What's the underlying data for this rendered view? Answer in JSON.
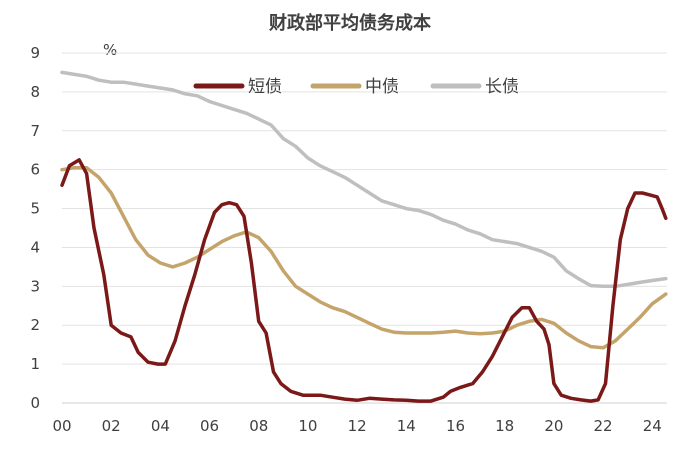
{
  "chart_data": {
    "type": "line",
    "title": "财政部平均债务成本",
    "unit_label": "%",
    "xlabel": "",
    "ylabel": "",
    "x_ticks": [
      "00",
      "02",
      "04",
      "06",
      "08",
      "10",
      "12",
      "14",
      "16",
      "18",
      "20",
      "22",
      "24"
    ],
    "y_ticks": [
      "0",
      "1",
      "2",
      "3",
      "4",
      "5",
      "6",
      "7",
      "8",
      "9"
    ],
    "xlim": [
      2000,
      2024.6
    ],
    "ylim": [
      0,
      9
    ],
    "grid": "horizontal",
    "legend_position": "top-center",
    "series": [
      {
        "name": "短债",
        "color": "#7B1818",
        "points": [
          [
            2000.0,
            5.6
          ],
          [
            2000.3,
            6.1
          ],
          [
            2000.7,
            6.25
          ],
          [
            2001.0,
            5.9
          ],
          [
            2001.3,
            4.5
          ],
          [
            2001.7,
            3.3
          ],
          [
            2002.0,
            2.0
          ],
          [
            2002.4,
            1.8
          ],
          [
            2002.8,
            1.7
          ],
          [
            2003.1,
            1.3
          ],
          [
            2003.5,
            1.05
          ],
          [
            2003.9,
            1.0
          ],
          [
            2004.2,
            1.0
          ],
          [
            2004.6,
            1.6
          ],
          [
            2005.0,
            2.5
          ],
          [
            2005.4,
            3.3
          ],
          [
            2005.8,
            4.2
          ],
          [
            2006.2,
            4.9
          ],
          [
            2006.5,
            5.1
          ],
          [
            2006.8,
            5.15
          ],
          [
            2007.1,
            5.1
          ],
          [
            2007.4,
            4.8
          ],
          [
            2007.7,
            3.6
          ],
          [
            2008.0,
            2.1
          ],
          [
            2008.3,
            1.8
          ],
          [
            2008.6,
            0.8
          ],
          [
            2008.9,
            0.5
          ],
          [
            2009.3,
            0.3
          ],
          [
            2009.8,
            0.2
          ],
          [
            2010.5,
            0.2
          ],
          [
            2011.0,
            0.15
          ],
          [
            2011.5,
            0.1
          ],
          [
            2012.0,
            0.07
          ],
          [
            2012.5,
            0.12
          ],
          [
            2013.0,
            0.1
          ],
          [
            2013.5,
            0.08
          ],
          [
            2014.0,
            0.07
          ],
          [
            2014.5,
            0.05
          ],
          [
            2015.0,
            0.05
          ],
          [
            2015.5,
            0.15
          ],
          [
            2015.8,
            0.3
          ],
          [
            2016.2,
            0.4
          ],
          [
            2016.7,
            0.5
          ],
          [
            2017.1,
            0.8
          ],
          [
            2017.5,
            1.2
          ],
          [
            2017.9,
            1.7
          ],
          [
            2018.3,
            2.2
          ],
          [
            2018.7,
            2.45
          ],
          [
            2019.0,
            2.45
          ],
          [
            2019.3,
            2.1
          ],
          [
            2019.6,
            1.9
          ],
          [
            2019.8,
            1.5
          ],
          [
            2020.0,
            0.5
          ],
          [
            2020.3,
            0.2
          ],
          [
            2020.7,
            0.12
          ],
          [
            2021.1,
            0.08
          ],
          [
            2021.5,
            0.05
          ],
          [
            2021.8,
            0.08
          ],
          [
            2022.1,
            0.5
          ],
          [
            2022.4,
            2.5
          ],
          [
            2022.7,
            4.2
          ],
          [
            2023.0,
            5.0
          ],
          [
            2023.3,
            5.4
          ],
          [
            2023.6,
            5.4
          ],
          [
            2023.9,
            5.35
          ],
          [
            2024.2,
            5.3
          ],
          [
            2024.4,
            5.0
          ],
          [
            2024.55,
            4.75
          ]
        ]
      },
      {
        "name": "中债",
        "color": "#C4A46A",
        "points": [
          [
            2000.0,
            6.0
          ],
          [
            2000.5,
            6.05
          ],
          [
            2001.0,
            6.05
          ],
          [
            2001.5,
            5.8
          ],
          [
            2002.0,
            5.4
          ],
          [
            2002.5,
            4.8
          ],
          [
            2003.0,
            4.2
          ],
          [
            2003.5,
            3.8
          ],
          [
            2004.0,
            3.6
          ],
          [
            2004.5,
            3.5
          ],
          [
            2005.0,
            3.6
          ],
          [
            2005.5,
            3.75
          ],
          [
            2006.0,
            3.95
          ],
          [
            2006.5,
            4.15
          ],
          [
            2007.0,
            4.3
          ],
          [
            2007.5,
            4.4
          ],
          [
            2008.0,
            4.25
          ],
          [
            2008.5,
            3.9
          ],
          [
            2009.0,
            3.4
          ],
          [
            2009.5,
            3.0
          ],
          [
            2010.0,
            2.8
          ],
          [
            2010.5,
            2.6
          ],
          [
            2011.0,
            2.45
          ],
          [
            2011.5,
            2.35
          ],
          [
            2012.0,
            2.2
          ],
          [
            2012.5,
            2.05
          ],
          [
            2013.0,
            1.9
          ],
          [
            2013.5,
            1.82
          ],
          [
            2014.0,
            1.8
          ],
          [
            2014.5,
            1.8
          ],
          [
            2015.0,
            1.8
          ],
          [
            2015.5,
            1.82
          ],
          [
            2016.0,
            1.85
          ],
          [
            2016.5,
            1.8
          ],
          [
            2017.0,
            1.78
          ],
          [
            2017.5,
            1.8
          ],
          [
            2018.0,
            1.85
          ],
          [
            2018.5,
            2.0
          ],
          [
            2019.0,
            2.1
          ],
          [
            2019.5,
            2.15
          ],
          [
            2020.0,
            2.05
          ],
          [
            2020.5,
            1.8
          ],
          [
            2021.0,
            1.6
          ],
          [
            2021.5,
            1.45
          ],
          [
            2022.0,
            1.42
          ],
          [
            2022.5,
            1.6
          ],
          [
            2023.0,
            1.9
          ],
          [
            2023.5,
            2.2
          ],
          [
            2024.0,
            2.55
          ],
          [
            2024.55,
            2.8
          ]
        ]
      },
      {
        "name": "长债",
        "color": "#BFBFBF",
        "points": [
          [
            2000.0,
            8.5
          ],
          [
            2000.5,
            8.45
          ],
          [
            2001.0,
            8.4
          ],
          [
            2001.5,
            8.3
          ],
          [
            2002.0,
            8.25
          ],
          [
            2002.5,
            8.25
          ],
          [
            2003.0,
            8.2
          ],
          [
            2003.5,
            8.15
          ],
          [
            2004.0,
            8.1
          ],
          [
            2004.5,
            8.05
          ],
          [
            2005.0,
            7.95
          ],
          [
            2005.5,
            7.9
          ],
          [
            2006.0,
            7.75
          ],
          [
            2006.5,
            7.65
          ],
          [
            2007.0,
            7.55
          ],
          [
            2007.5,
            7.45
          ],
          [
            2008.0,
            7.3
          ],
          [
            2008.5,
            7.15
          ],
          [
            2009.0,
            6.8
          ],
          [
            2009.5,
            6.6
          ],
          [
            2010.0,
            6.3
          ],
          [
            2010.5,
            6.1
          ],
          [
            2011.0,
            5.95
          ],
          [
            2011.5,
            5.8
          ],
          [
            2012.0,
            5.6
          ],
          [
            2012.5,
            5.4
          ],
          [
            2013.0,
            5.2
          ],
          [
            2013.5,
            5.1
          ],
          [
            2014.0,
            5.0
          ],
          [
            2014.5,
            4.95
          ],
          [
            2015.0,
            4.85
          ],
          [
            2015.5,
            4.7
          ],
          [
            2016.0,
            4.6
          ],
          [
            2016.5,
            4.45
          ],
          [
            2017.0,
            4.35
          ],
          [
            2017.5,
            4.2
          ],
          [
            2018.0,
            4.15
          ],
          [
            2018.5,
            4.1
          ],
          [
            2019.0,
            4.0
          ],
          [
            2019.5,
            3.9
          ],
          [
            2020.0,
            3.75
          ],
          [
            2020.5,
            3.4
          ],
          [
            2021.0,
            3.2
          ],
          [
            2021.5,
            3.02
          ],
          [
            2022.0,
            3.0
          ],
          [
            2022.5,
            3.0
          ],
          [
            2023.0,
            3.05
          ],
          [
            2023.5,
            3.1
          ],
          [
            2024.0,
            3.15
          ],
          [
            2024.55,
            3.2
          ]
        ]
      }
    ]
  }
}
